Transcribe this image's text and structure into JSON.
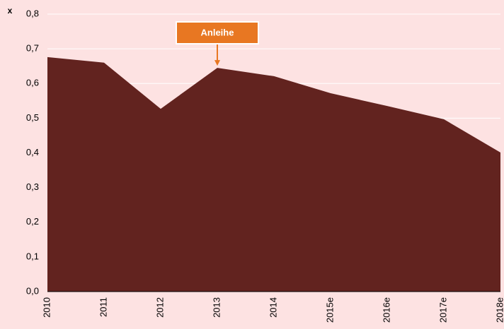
{
  "chart_data": {
    "type": "area",
    "y_label": "x",
    "categories": [
      "2010",
      "2011",
      "2012",
      "2013",
      "2014",
      "2015e",
      "2016e",
      "2017e",
      "2018e"
    ],
    "values": [
      0.676,
      0.66,
      0.527,
      0.645,
      0.621,
      0.572,
      0.535,
      0.497,
      0.401
    ],
    "color": "#62231f",
    "ylim": [
      0,
      0.8
    ],
    "yticks": [
      {
        "value": 0,
        "label": "0,0"
      },
      {
        "value": 0.1,
        "label": "0,1"
      },
      {
        "value": 0.2,
        "label": "0,2"
      },
      {
        "value": 0.3,
        "label": "0,3"
      },
      {
        "value": 0.4,
        "label": "0,4"
      },
      {
        "value": 0.5,
        "label": "0,5"
      },
      {
        "value": 0.6,
        "label": "0,6"
      },
      {
        "value": 0.7,
        "label": "0,7"
      },
      {
        "value": 0.8,
        "label": "0,8"
      }
    ],
    "grid": true,
    "annotations": [
      {
        "text": "Anleihe",
        "x": "2013"
      }
    ]
  }
}
